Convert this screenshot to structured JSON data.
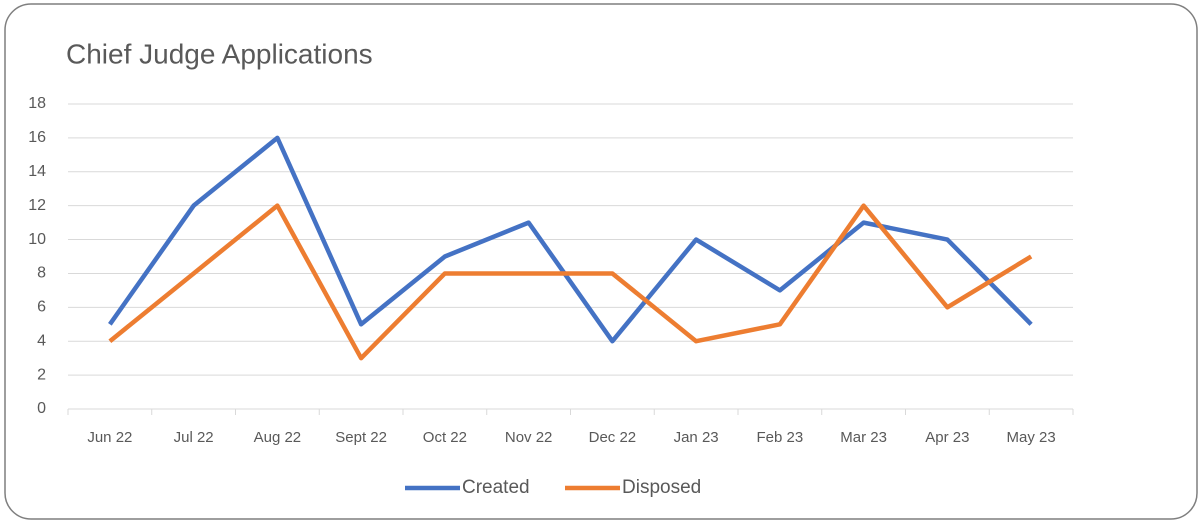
{
  "chart_data": {
    "type": "line",
    "title": "Chief Judge Applications",
    "categories": [
      "Jun 22",
      "Jul 22",
      "Aug 22",
      "Sept 22",
      "Oct 22",
      "Nov 22",
      "Dec 22",
      "Jan 23",
      "Feb 23",
      "Mar 23",
      "Apr 23",
      "May 23"
    ],
    "series": [
      {
        "name": "Created",
        "color": "#4472c4",
        "values": [
          5,
          12,
          16,
          5,
          9,
          11,
          4,
          10,
          7,
          11,
          10,
          5
        ]
      },
      {
        "name": "Disposed",
        "color": "#ed7d31",
        "values": [
          4,
          8,
          12,
          3,
          8,
          8,
          8,
          4,
          5,
          12,
          6,
          9
        ]
      }
    ],
    "ylim": [
      0,
      18
    ],
    "yticks": [
      0,
      2,
      4,
      6,
      8,
      10,
      12,
      14,
      16,
      18
    ],
    "grid": true,
    "legend": "bottom"
  }
}
